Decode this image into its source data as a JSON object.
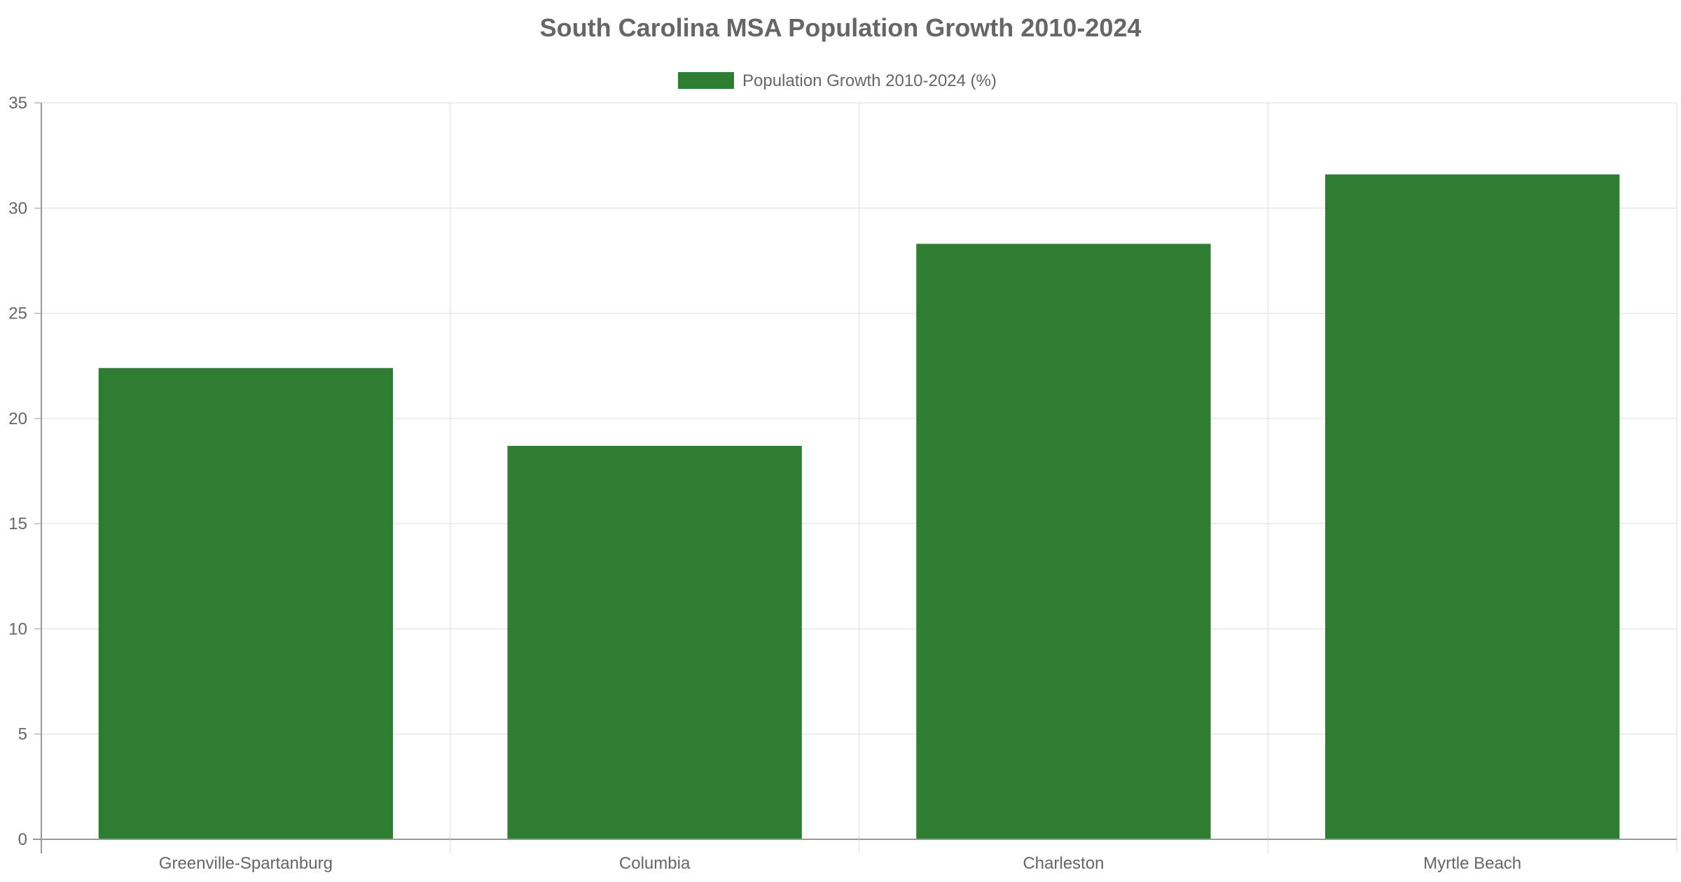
{
  "chart_data": {
    "type": "bar",
    "title": "South Carolina MSA Population Growth 2010-2024",
    "xlabel": "",
    "ylabel": "",
    "categories": [
      "Greenville-Spartanburg",
      "Columbia",
      "Charleston",
      "Myrtle Beach"
    ],
    "series": [
      {
        "name": "Population Growth 2010-2024 (%)",
        "values": [
          22.4,
          18.7,
          28.3,
          31.6
        ],
        "color": "#2e7d32"
      }
    ],
    "ylim": [
      0,
      35
    ],
    "yticks": [
      "0",
      "5",
      "10",
      "15",
      "20",
      "25",
      "30",
      "35"
    ],
    "grid": true,
    "legend_position": "top-center"
  },
  "colors": {
    "title": "#666666",
    "text": "#666666",
    "grid": "#dddddd",
    "axis": "#999999",
    "bar": "#2e7d32"
  }
}
